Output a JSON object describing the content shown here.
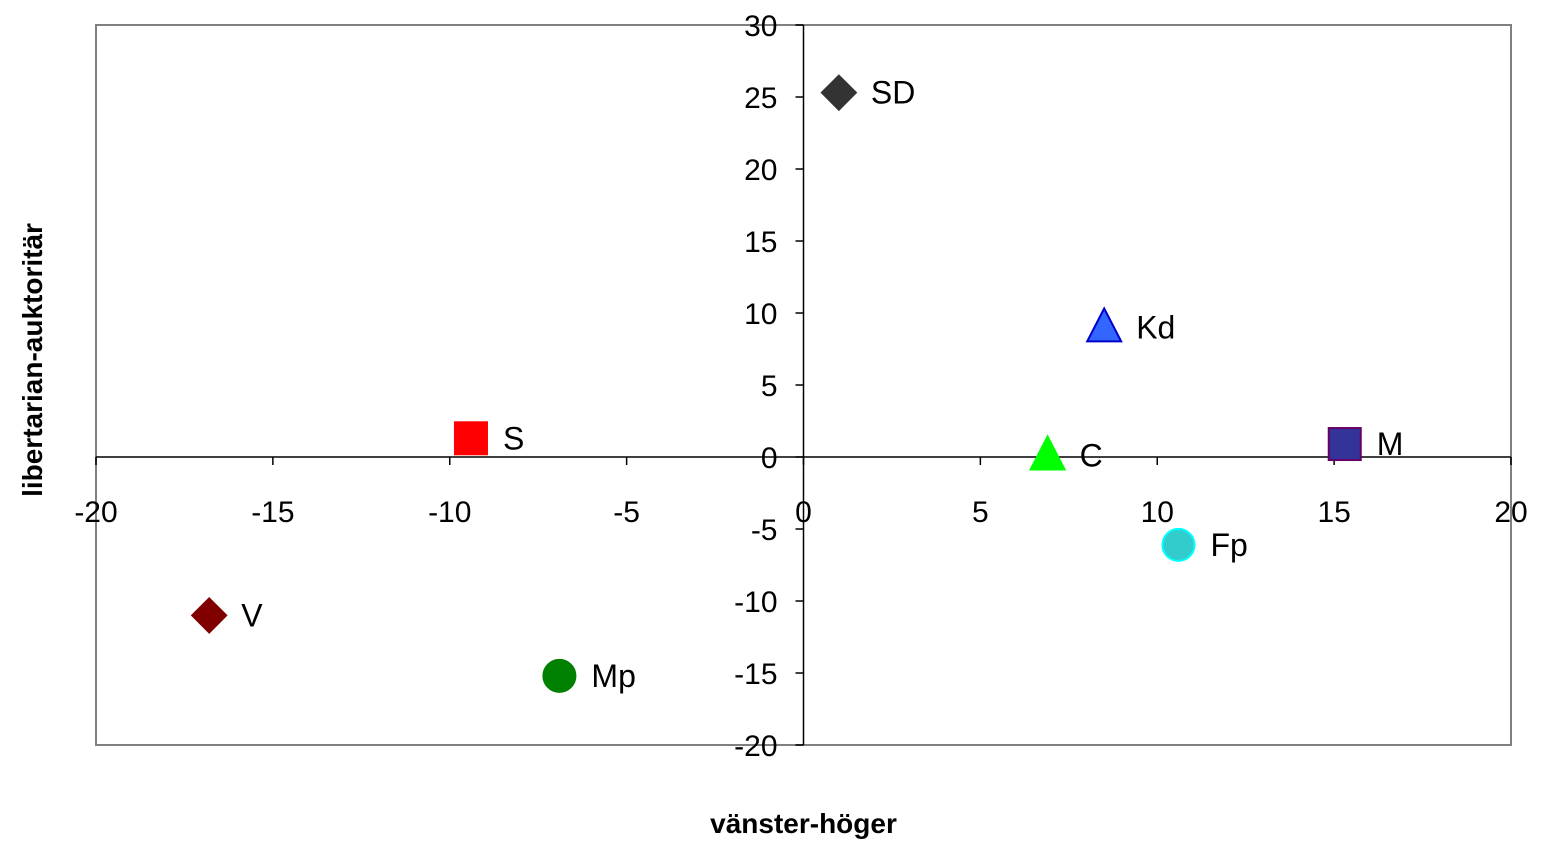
{
  "chart_data": {
    "type": "scatter",
    "xlabel": "vänster-höger",
    "ylabel": "libertarian-auktoritär",
    "xlim": [
      -20,
      20
    ],
    "ylim": [
      -20,
      30
    ],
    "x_ticks": [
      -20,
      -15,
      -10,
      -5,
      0,
      5,
      10,
      15,
      20
    ],
    "y_ticks": [
      30,
      25,
      20,
      15,
      10,
      5,
      0,
      -5,
      -10,
      -15,
      -20
    ],
    "x_tick_labels": [
      "-20",
      "-15",
      "-10",
      "-5",
      "0",
      "5",
      "10",
      "15",
      "20"
    ],
    "y_tick_labels": [
      "30",
      "25",
      "20",
      "15",
      "10",
      "5",
      "0",
      "-5",
      "-10",
      "-15",
      "-20"
    ],
    "grid": false,
    "points": [
      {
        "label": "SD",
        "x": 1.0,
        "y": 25.3,
        "marker": "diamond",
        "color": "#333333",
        "stroke": "#333333"
      },
      {
        "label": "Kd",
        "x": 8.5,
        "y": 9.0,
        "marker": "triangle",
        "color": "#3366ff",
        "stroke": "#0000cc"
      },
      {
        "label": "S",
        "x": -9.4,
        "y": 1.3,
        "marker": "square",
        "color": "#ff0000",
        "stroke": "#ff0000"
      },
      {
        "label": "C",
        "x": 6.9,
        "y": 0.1,
        "marker": "triangle",
        "color": "#00ff00",
        "stroke": "#00ff00"
      },
      {
        "label": "M",
        "x": 15.3,
        "y": 0.9,
        "marker": "square",
        "color": "#333399",
        "stroke": "#660066"
      },
      {
        "label": "Fp",
        "x": 10.6,
        "y": -6.1,
        "marker": "circle",
        "color": "#33cccc",
        "stroke": "#00ffff"
      },
      {
        "label": "V",
        "x": -16.8,
        "y": -11.0,
        "marker": "diamond",
        "color": "#800000",
        "stroke": "#800000"
      },
      {
        "label": "Mp",
        "x": -6.9,
        "y": -15.2,
        "marker": "circle",
        "color": "#008000",
        "stroke": "#008000"
      }
    ]
  }
}
